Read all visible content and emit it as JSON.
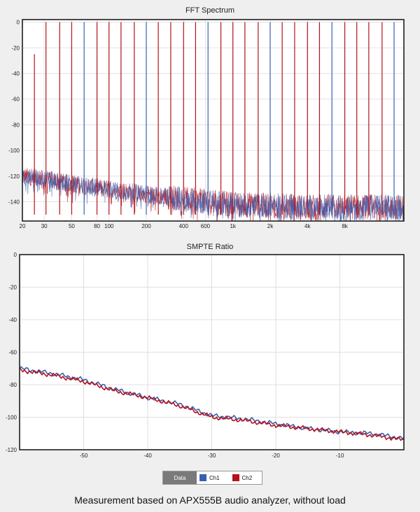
{
  "chart_data": [
    {
      "type": "line",
      "title": "FFT Spectrum",
      "xlabel": "",
      "ylabel": "",
      "xscale": "log",
      "xlim": [
        20,
        24000
      ],
      "ylim": [
        -155,
        2
      ],
      "y_ticks": [
        0,
        -20,
        -40,
        -60,
        -80,
        -100,
        -120,
        -140
      ],
      "x_ticks": [
        {
          "v": 20,
          "label": "20"
        },
        {
          "v": 30,
          "label": "30"
        },
        {
          "v": 50,
          "label": "50"
        },
        {
          "v": 80,
          "label": "80"
        },
        {
          "v": 100,
          "label": "100"
        },
        {
          "v": 200,
          "label": "200"
        },
        {
          "v": 400,
          "label": "400"
        },
        {
          "v": 600,
          "label": "600"
        },
        {
          "v": 1000,
          "label": "1k"
        },
        {
          "v": 2000,
          "label": "2k"
        },
        {
          "v": 4000,
          "label": "4k"
        },
        {
          "v": 8000,
          "label": "8k"
        }
      ],
      "grid": true,
      "tones_hz": [
        25,
        31,
        40,
        50,
        63,
        80,
        100,
        125,
        160,
        200,
        250,
        315,
        400,
        500,
        630,
        800,
        1000,
        1250,
        1600,
        2000,
        2500,
        3150,
        4000,
        5000,
        6300,
        8000,
        10000,
        12500,
        16000,
        20000
      ],
      "tone_level_db": 0,
      "tone_level_first_db": -25,
      "noise_floor_db": [
        {
          "f": 20,
          "db": -120
        },
        {
          "f": 30,
          "db": -122
        },
        {
          "f": 50,
          "db": -126
        },
        {
          "f": 100,
          "db": -130
        },
        {
          "f": 200,
          "db": -134
        },
        {
          "f": 400,
          "db": -138
        },
        {
          "f": 1000,
          "db": -142
        },
        {
          "f": 4000,
          "db": -144
        },
        {
          "f": 20000,
          "db": -144
        }
      ],
      "series": [
        {
          "name": "Ch1",
          "color": "#3a5fb0"
        },
        {
          "name": "Ch2",
          "color": "#b5121b"
        }
      ]
    },
    {
      "type": "line",
      "title": "SMPTE  Ratio",
      "xlabel": "",
      "ylabel": "",
      "xlim": [
        -60,
        0
      ],
      "ylim": [
        -120,
        0
      ],
      "y_ticks": [
        0,
        -20,
        -40,
        -60,
        -80,
        -100,
        -120
      ],
      "x_ticks": [
        -50,
        -40,
        -30,
        -20,
        -10
      ],
      "grid": true,
      "x": [
        -60,
        -55,
        -50,
        -45,
        -40,
        -35,
        -30,
        -25,
        -20,
        -15,
        -10,
        -5,
        0
      ],
      "series": [
        {
          "name": "Ch1",
          "color": "#3a5fb0",
          "values": [
            -70,
            -73,
            -77,
            -83,
            -88,
            -92,
            -99,
            -101,
            -104,
            -107,
            -109,
            -110,
            -113
          ]
        },
        {
          "name": "Ch2",
          "color": "#b5121b",
          "values": [
            -71,
            -74,
            -78,
            -84,
            -88,
            -93,
            -100,
            -102,
            -105,
            -107,
            -109,
            -111,
            -114
          ]
        }
      ]
    }
  ],
  "legend": {
    "header": "Data",
    "items": [
      {
        "label": "Ch1",
        "color": "#3a5fb0"
      },
      {
        "label": "Ch2",
        "color": "#b5121b"
      }
    ]
  },
  "caption": "Measurement based on APX555B audio analyzer, without load"
}
